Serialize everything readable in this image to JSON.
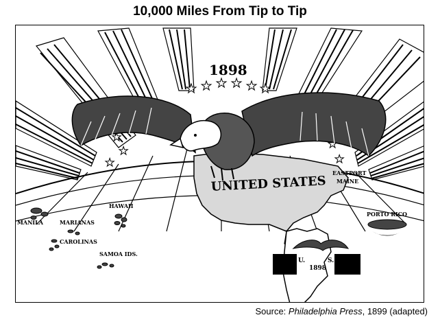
{
  "title": "10,000 Miles From Tip to Tip",
  "cartoon": {
    "year": "1898",
    "country_label": "UNITED STATES",
    "place_labels": {
      "eastport": "EASTPORT",
      "maine": "MAINE",
      "porto_rico": "PORTO RICO",
      "hawaii": "HAWAII",
      "manila": "MANILA",
      "marianas": "MARIANAS",
      "carolinas": "CAROLINAS",
      "samoa": "SAMOA IDS."
    },
    "inset": {
      "year": "1898",
      "letter_u": "U.",
      "letter_s": "S."
    }
  },
  "source": {
    "prefix": "Source: ",
    "publication": "Philadelphia Press",
    "suffix": ", 1899 (adapted)"
  }
}
